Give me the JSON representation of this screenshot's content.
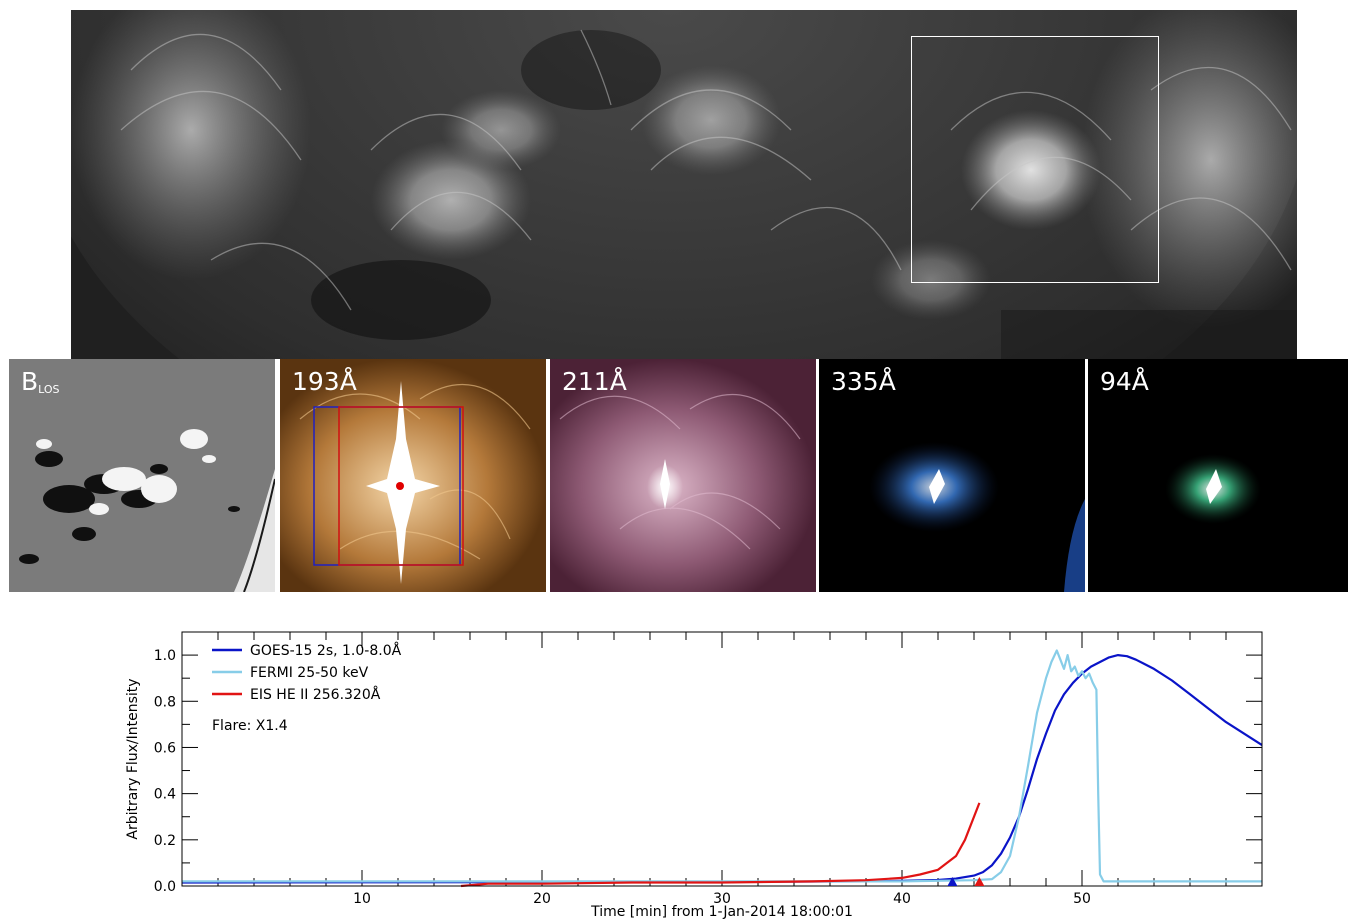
{
  "panels": [
    {
      "id": "blos",
      "label_main": "B",
      "label_sub": "LOS"
    },
    {
      "id": "193",
      "label": "193Å"
    },
    {
      "id": "211",
      "label": "211Å"
    },
    {
      "id": "335",
      "label": "335Å"
    },
    {
      "id": "94",
      "label": "94Å"
    }
  ],
  "colors": {
    "goes": "#0a14c8",
    "fermi": "#87cde8",
    "eis": "#e11414",
    "box_blue": "#2020c0",
    "box_red": "#d01010",
    "aia193": "#b07434",
    "aia211": "#8c5a72",
    "aia335": "#1e5ab4",
    "aia94": "#1e9664"
  },
  "chart_data": {
    "type": "line",
    "xlabel": "Time [min] from 1-Jan-2014 18:00:01",
    "ylabel": "Arbitrary Flux/Intensity",
    "xlim": [
      0,
      60
    ],
    "ylim": [
      0,
      1.1
    ],
    "x_ticks": [
      10,
      20,
      30,
      40,
      50
    ],
    "y_ticks": [
      "0.0",
      "0.2",
      "0.4",
      "0.6",
      "0.8",
      "1.0"
    ],
    "legend_position": "top-left",
    "annotation": "Flare: X1.4",
    "series": [
      {
        "name": "GOES-15 2s, 1.0-8.0Å",
        "color_key": "goes",
        "x": [
          0,
          10,
          20,
          30,
          38,
          40,
          42,
          43,
          44,
          44.5,
          45,
          45.5,
          46,
          46.5,
          47,
          47.5,
          48,
          48.5,
          49,
          49.5,
          50,
          50.5,
          51,
          51.5,
          52,
          52.5,
          53,
          54,
          55,
          56,
          57,
          58,
          59,
          60
        ],
        "y": [
          0.015,
          0.016,
          0.017,
          0.018,
          0.02,
          0.022,
          0.026,
          0.032,
          0.045,
          0.06,
          0.09,
          0.14,
          0.21,
          0.3,
          0.42,
          0.55,
          0.66,
          0.76,
          0.83,
          0.88,
          0.92,
          0.95,
          0.97,
          0.99,
          1.0,
          0.995,
          0.98,
          0.94,
          0.89,
          0.83,
          0.77,
          0.71,
          0.66,
          0.61
        ]
      },
      {
        "name": "FERMI 25-50 keV",
        "color_key": "fermi",
        "x": [
          0,
          10,
          20,
          30,
          40,
          44,
          45,
          45.5,
          46,
          46.5,
          47,
          47.5,
          48,
          48.3,
          48.6,
          48.8,
          49,
          49.2,
          49.4,
          49.6,
          49.8,
          50,
          50.2,
          50.4,
          50.6,
          50.8,
          50.9,
          51,
          51.2,
          55,
          60
        ],
        "y": [
          0.02,
          0.02,
          0.02,
          0.02,
          0.02,
          0.025,
          0.03,
          0.06,
          0.13,
          0.3,
          0.52,
          0.75,
          0.9,
          0.97,
          1.02,
          0.98,
          0.94,
          1.0,
          0.93,
          0.95,
          0.91,
          0.93,
          0.9,
          0.92,
          0.88,
          0.85,
          0.4,
          0.05,
          0.02,
          0.02,
          0.02
        ]
      },
      {
        "name": "EIS  HE II 256.320Å",
        "color_key": "eis",
        "x": [
          15.5,
          17,
          20,
          25,
          30,
          35,
          38,
          40,
          41,
          42,
          43,
          43.5,
          44.3
        ],
        "y": [
          0.0,
          0.01,
          0.01,
          0.015,
          0.015,
          0.02,
          0.025,
          0.035,
          0.05,
          0.07,
          0.13,
          0.2,
          0.36
        ]
      }
    ]
  }
}
